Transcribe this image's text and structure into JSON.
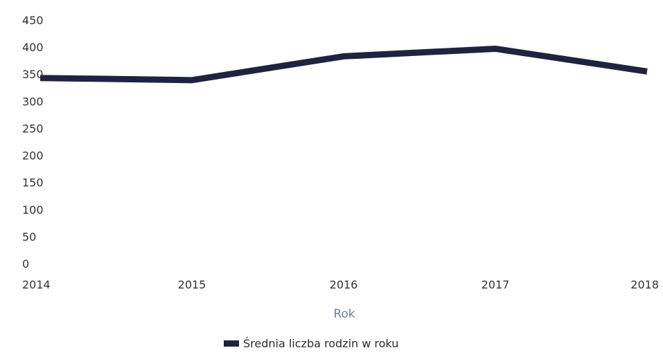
{
  "chart_data": {
    "type": "line",
    "x": [
      "2014",
      "2015",
      "2016",
      "2017",
      "2018"
    ],
    "series": [
      {
        "name": "Średnia liczba rodzin w roku",
        "values": [
          343,
          339,
          383,
          397,
          355
        ],
        "color": "#1f2340"
      }
    ],
    "xlabel": "Rok",
    "ylabel": "",
    "ylim": [
      0,
      450
    ],
    "yticks": [
      "0",
      "50",
      "100",
      "150",
      "200",
      "250",
      "300",
      "350",
      "400",
      "450"
    ],
    "grid": false,
    "legend_position": "bottom-center",
    "colors": {
      "line": "#1f2340",
      "axis_title": "#6f7fa6",
      "tick_text": "#333333"
    }
  }
}
